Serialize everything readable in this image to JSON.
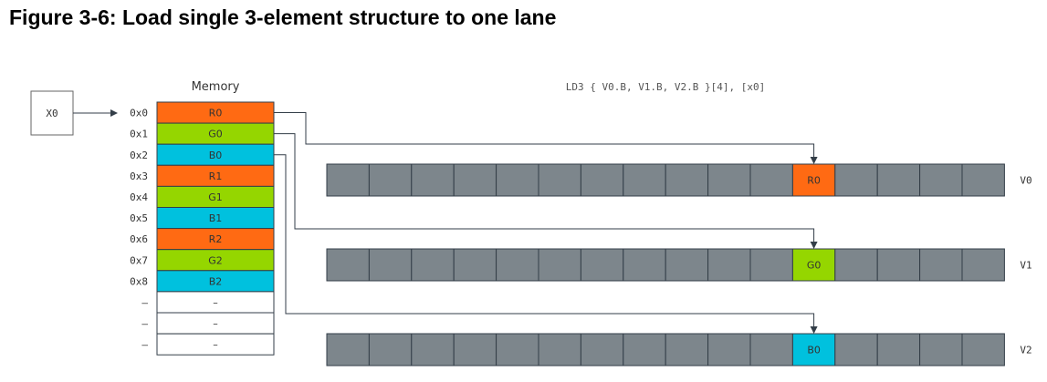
{
  "figure": {
    "title": "Figure 3-6: Load single 3-element structure to one lane"
  },
  "instruction": "LD3 { V0.B, V1.B, V2.B }[4], [x0]",
  "register_x0": "X0",
  "memory": {
    "label": "Memory",
    "rows": [
      {
        "addr": "0x0",
        "value": "R0",
        "kind": "R"
      },
      {
        "addr": "0x1",
        "value": "G0",
        "kind": "G"
      },
      {
        "addr": "0x2",
        "value": "B0",
        "kind": "B"
      },
      {
        "addr": "0x3",
        "value": "R1",
        "kind": "R"
      },
      {
        "addr": "0x4",
        "value": "G1",
        "kind": "G"
      },
      {
        "addr": "0x5",
        "value": "B1",
        "kind": "B"
      },
      {
        "addr": "0x6",
        "value": "R2",
        "kind": "R"
      },
      {
        "addr": "0x7",
        "value": "G2",
        "kind": "G"
      },
      {
        "addr": "0x8",
        "value": "B2",
        "kind": "B"
      },
      {
        "addr": "–",
        "value": "–",
        "kind": "empty"
      },
      {
        "addr": "–",
        "value": "–",
        "kind": "empty"
      },
      {
        "addr": "–",
        "value": "–",
        "kind": "empty"
      }
    ]
  },
  "vectors": [
    {
      "name": "V0",
      "lane_value": "R0",
      "kind": "R",
      "source_row": 0
    },
    {
      "name": "V1",
      "lane_value": "G0",
      "kind": "G",
      "source_row": 1
    },
    {
      "name": "V2",
      "lane_value": "B0",
      "kind": "B",
      "source_row": 2
    }
  ],
  "lanes_per_vector": 16,
  "highlighted_lane_from_left": 11,
  "colors": {
    "R": "#ff6a13",
    "G": "#95d600",
    "B": "#00c1de",
    "empty": "#ffffff",
    "lane": "#7d868c",
    "line": "#333e48"
  }
}
